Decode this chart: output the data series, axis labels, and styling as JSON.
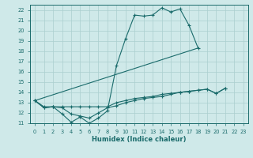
{
  "xlabel": "Humidex (Indice chaleur)",
  "bg_color": "#cfe9e9",
  "grid_color": "#aacfcf",
  "line_color": "#1a6b6b",
  "xlim": [
    -0.5,
    23.5
  ],
  "ylim": [
    11,
    22.5
  ],
  "xticks": [
    0,
    1,
    2,
    3,
    4,
    5,
    6,
    7,
    8,
    9,
    10,
    11,
    12,
    13,
    14,
    15,
    16,
    17,
    18,
    19,
    20,
    21,
    22,
    23
  ],
  "yticks": [
    11,
    12,
    13,
    14,
    15,
    16,
    17,
    18,
    19,
    20,
    21,
    22
  ],
  "series1_x": [
    0,
    1,
    2,
    3,
    4,
    5,
    6,
    7,
    8,
    9,
    10,
    11,
    12,
    13,
    14,
    15,
    16,
    17,
    18
  ],
  "series1_y": [
    13.2,
    12.5,
    12.6,
    11.9,
    11.1,
    11.6,
    11.0,
    11.5,
    12.2,
    16.6,
    19.2,
    21.5,
    21.4,
    21.5,
    22.2,
    21.8,
    22.1,
    20.5,
    18.3
  ],
  "series2_x": [
    0,
    1,
    2,
    3,
    4,
    5,
    6,
    7,
    8,
    9,
    10,
    11,
    12,
    13,
    14,
    15,
    16,
    17,
    18,
    19,
    20,
    21
  ],
  "series2_y": [
    13.2,
    12.5,
    12.6,
    12.6,
    12.6,
    12.6,
    12.6,
    12.6,
    12.6,
    13.0,
    13.2,
    13.4,
    13.5,
    13.6,
    13.8,
    13.9,
    14.0,
    14.1,
    14.2,
    14.3,
    13.9,
    14.4
  ],
  "series3_x": [
    0,
    18
  ],
  "series3_y": [
    13.2,
    18.3
  ],
  "series4_x": [
    0,
    1,
    2,
    3,
    4,
    5,
    6,
    7,
    8,
    9,
    10,
    11,
    12,
    13,
    14,
    15,
    16,
    17,
    18,
    19,
    20,
    21
  ],
  "series4_y": [
    13.2,
    12.6,
    12.6,
    12.5,
    11.9,
    11.7,
    11.5,
    12.0,
    12.5,
    12.7,
    13.0,
    13.2,
    13.4,
    13.5,
    13.6,
    13.8,
    14.0,
    14.1,
    14.2,
    14.3,
    13.9,
    14.4
  ]
}
